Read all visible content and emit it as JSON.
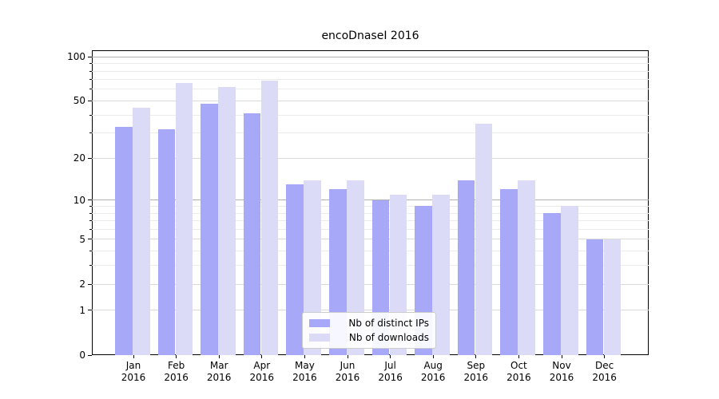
{
  "chart_data": {
    "type": "bar",
    "title": "encoDnaseI 2016",
    "categories": [
      "Jan",
      "Feb",
      "Mar",
      "Apr",
      "May",
      "Jun",
      "Jul",
      "Aug",
      "Sep",
      "Oct",
      "Nov",
      "Dec"
    ],
    "year_label": "2016",
    "series": [
      {
        "name": "Nb of distinct IPs",
        "color": "#a8a8f8",
        "values": [
          33,
          32,
          48,
          41,
          13,
          12,
          10,
          9,
          14,
          12,
          8,
          5
        ]
      },
      {
        "name": "Nb of downloads",
        "color": "#dbdbf8",
        "values": [
          45,
          66,
          62,
          69,
          14,
          14,
          11,
          11,
          35,
          14,
          9,
          5
        ]
      }
    ],
    "xlabel": "",
    "ylabel": "",
    "yscale": "log10(value+1)",
    "ylim": [
      0,
      110
    ],
    "ytick_labels": [
      "100",
      "50",
      "20",
      "10",
      "5",
      "2",
      "1",
      "0"
    ],
    "yticks": [
      100,
      50,
      20,
      10,
      5,
      2,
      1,
      0
    ],
    "grid_decade_lines": [
      100,
      10
    ],
    "grid_labeled_lines": [
      50,
      20,
      5,
      2,
      1
    ],
    "grid_minor_lines": [
      3,
      4,
      6,
      7,
      8,
      9,
      30,
      40,
      60,
      70,
      80,
      90
    ],
    "grid_colors": {
      "decade": "#b0b0b0",
      "labeled": "#d9d9d9",
      "minor": "#ebebeb"
    },
    "legend_position": "bottom-center",
    "legend": [
      "Nb of distinct IPs",
      "Nb of downloads"
    ]
  }
}
